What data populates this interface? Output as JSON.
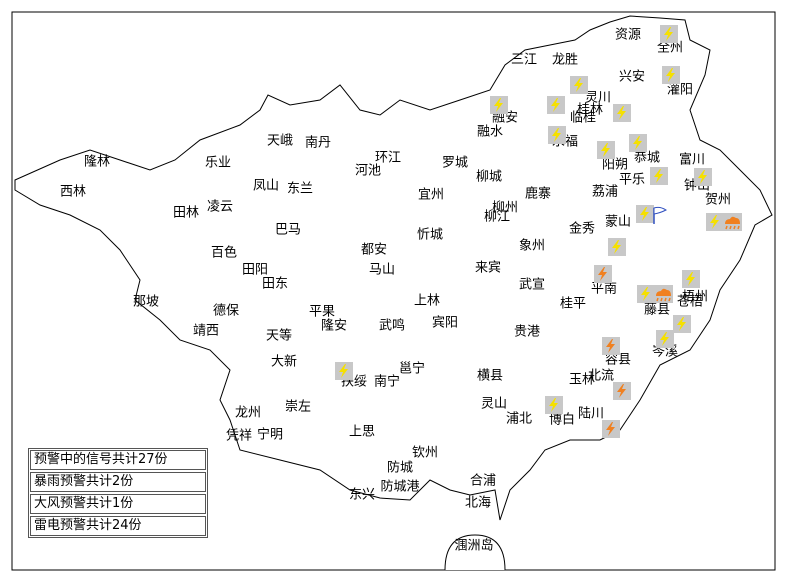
{
  "places": [
    "资源",
    "全州",
    "三江",
    "龙胜",
    "兴安",
    "灌阳",
    "灵川",
    "桂林",
    "融安",
    "临桂",
    "融水",
    "永福",
    "阳朔",
    "恭城",
    "富川",
    "平乐",
    "钟山",
    "罗城",
    "环江",
    "天峨",
    "南丹",
    "隆林",
    "乐业",
    "河池",
    "柳城",
    "鹿寨",
    "荔浦",
    "贺州",
    "西林",
    "凤山",
    "东兰",
    "宜州",
    "柳州",
    "柳江",
    "金秀",
    "蒙山",
    "田林",
    "凌云",
    "巴马",
    "忻城",
    "象州",
    "都安",
    "百色",
    "田阳",
    "马山",
    "来宾",
    "田东",
    "武宣",
    "平南",
    "梧州",
    "藤县",
    "苍梧",
    "那坡",
    "德保",
    "平果",
    "上林",
    "桂平",
    "靖西",
    "隆安",
    "武鸣",
    "宾阳",
    "贵港",
    "天等",
    "岑溪",
    "容县",
    "大新",
    "扶绥",
    "南宁",
    "邕宁",
    "横县",
    "玉林",
    "北流",
    "灵山",
    "崇左",
    "龙州",
    "浦北",
    "博白",
    "陆川",
    "凭祥",
    "宁明",
    "上思",
    "钦州",
    "防城",
    "防城港",
    "合浦",
    "东兴",
    "北海",
    "涠洲岛"
  ],
  "legend": [
    "预警中的信号共计27份",
    "暴雨预警共计2份",
    "大风预警共计1份",
    "雷电预警共计24份"
  ]
}
